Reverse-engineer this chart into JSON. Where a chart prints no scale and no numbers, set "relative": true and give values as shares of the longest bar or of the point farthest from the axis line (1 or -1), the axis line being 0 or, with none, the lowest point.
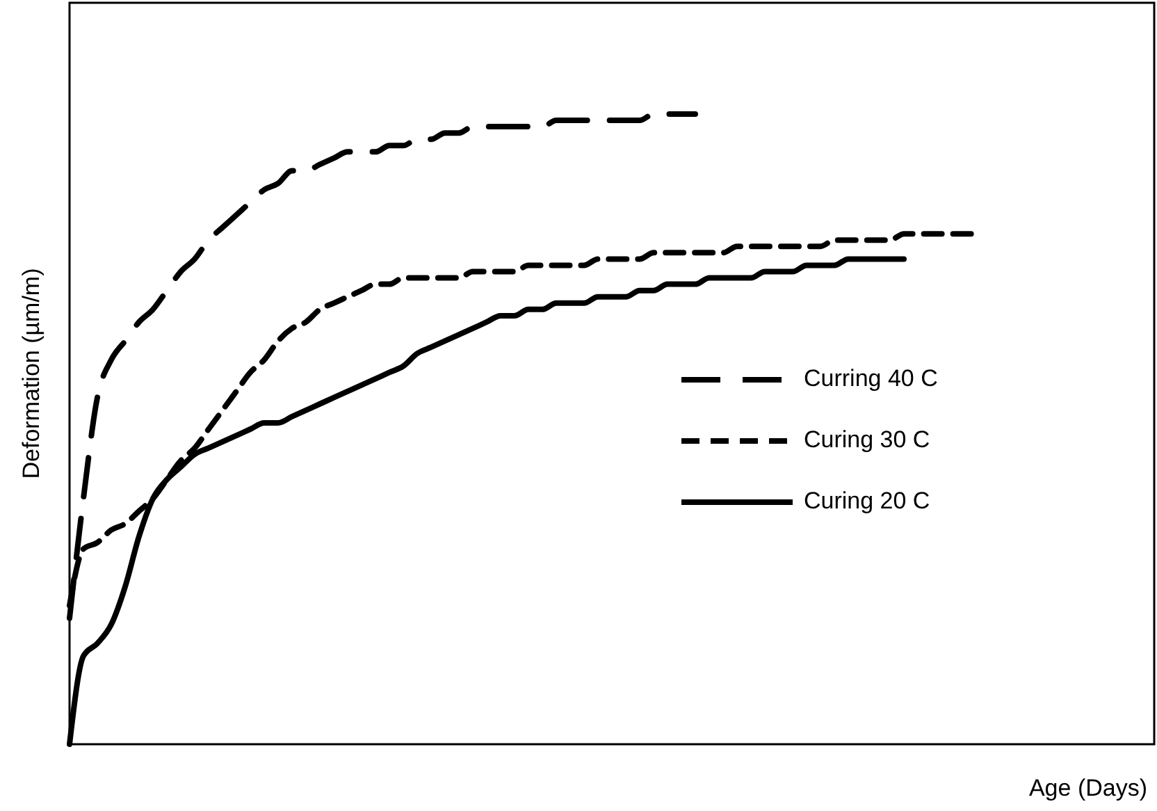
{
  "chart_data": {
    "type": "line",
    "relative": true,
    "xlabel": "Age (Days)",
    "ylabel": "Deformation (µm/m)",
    "legend": "right",
    "marker": "none",
    "categories": [
      null,
      null,
      null,
      null,
      null,
      null,
      null,
      null,
      null,
      null,
      null,
      null,
      null,
      null,
      null,
      null,
      null,
      null,
      null,
      null,
      null,
      null,
      null,
      null,
      null,
      null,
      null,
      null,
      null,
      null,
      null,
      null,
      null,
      null,
      null,
      null,
      null,
      null,
      null,
      null,
      null,
      null,
      null,
      null,
      null,
      null,
      null,
      null,
      null,
      null,
      null,
      null,
      null,
      null,
      null,
      null,
      null,
      null,
      null,
      null,
      null,
      null,
      null,
      null,
      null,
      null,
      null,
      null,
      null,
      null,
      null,
      null,
      null,
      null,
      null,
      null,
      null,
      null,
      null
    ],
    "series": [
      {
        "name": "Curring 40 C",
        "color": "#000000",
        "line_style": "dashed",
        "values": [
          0.2,
          0.39,
          0.55,
          0.61,
          0.64,
          0.67,
          0.69,
          0.72,
          0.75,
          0.77,
          0.8,
          0.82,
          0.84,
          0.86,
          0.88,
          0.89,
          0.91,
          0.91,
          0.92,
          0.93,
          0.94,
          0.94,
          0.94,
          0.95,
          0.95,
          0.96,
          0.96,
          0.97,
          0.97,
          0.98,
          0.98,
          0.98,
          0.98,
          0.98,
          0.98,
          0.99,
          0.99,
          0.99,
          0.99,
          0.99,
          0.99,
          0.99,
          1.0,
          1.0,
          1.0,
          1.0,
          null,
          null,
          null,
          null,
          null,
          null,
          null,
          null,
          null,
          null,
          null,
          null,
          null,
          null,
          null,
          null,
          null,
          null,
          null,
          null,
          null,
          null,
          null,
          null,
          null,
          null,
          null,
          null,
          null,
          null,
          null,
          null,
          null
        ]
      },
      {
        "name": "Curing 30 C",
        "color": "#000000",
        "line_style": "dashed",
        "values": [
          0.22,
          0.31,
          0.32,
          0.34,
          0.35,
          0.37,
          0.39,
          0.42,
          0.45,
          0.47,
          0.5,
          0.53,
          0.56,
          0.59,
          0.61,
          0.64,
          0.66,
          0.67,
          0.69,
          0.7,
          0.71,
          0.72,
          0.73,
          0.73,
          0.74,
          0.74,
          0.74,
          0.74,
          0.74,
          0.75,
          0.75,
          0.75,
          0.75,
          0.76,
          0.76,
          0.76,
          0.76,
          0.76,
          0.77,
          0.77,
          0.77,
          0.77,
          0.78,
          0.78,
          0.78,
          0.78,
          0.78,
          0.78,
          0.79,
          0.79,
          0.79,
          0.79,
          0.79,
          0.79,
          0.79,
          0.8,
          0.8,
          0.8,
          0.8,
          0.8,
          0.81,
          0.81,
          0.81,
          0.81,
          0.81,
          0.81,
          null,
          null,
          null,
          null,
          null,
          null,
          null,
          null,
          null,
          null,
          null,
          null,
          null
        ]
      },
      {
        "name": "Curing 20 C",
        "color": "#000000",
        "line_style": "solid",
        "values": [
          0,
          0.14,
          0.16,
          0.19,
          0.25,
          0.33,
          0.39,
          0.42,
          0.44,
          0.46,
          0.47,
          0.48,
          0.49,
          0.5,
          0.51,
          0.51,
          0.52,
          0.53,
          0.54,
          0.55,
          0.56,
          0.57,
          0.58,
          0.59,
          0.6,
          0.62,
          0.63,
          0.64,
          0.65,
          0.66,
          0.67,
          0.68,
          0.68,
          0.69,
          0.69,
          0.7,
          0.7,
          0.7,
          0.71,
          0.71,
          0.71,
          0.72,
          0.72,
          0.73,
          0.73,
          0.73,
          0.74,
          0.74,
          0.74,
          0.74,
          0.75,
          0.75,
          0.75,
          0.76,
          0.76,
          0.76,
          0.77,
          0.77,
          0.77,
          0.77,
          0.77,
          null,
          null,
          null,
          null,
          null,
          null,
          null,
          null,
          null,
          null,
          null,
          null,
          null,
          null,
          null,
          null,
          null,
          null
        ]
      }
    ]
  }
}
